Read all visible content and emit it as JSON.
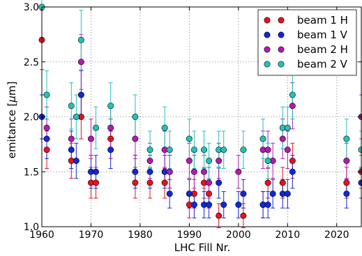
{
  "chart_data": {
    "type": "scatter",
    "title": "",
    "xlabel": "LHC Fill Nr.",
    "ylabel": "emitance [μm]",
    "ylabel_parts": {
      "prefix": "emitance [",
      "mu": "μ",
      "suffix": "m]"
    },
    "xlim": [
      1960,
      2025
    ],
    "ylim": [
      1.0,
      3.0
    ],
    "x_ticks": [
      1960,
      1970,
      1980,
      1990,
      2000,
      2010,
      2020
    ],
    "y_ticks": [
      1.0,
      1.5,
      2.0,
      2.5,
      3.0
    ],
    "y_tick_labels": [
      "1.0",
      "1.5",
      "2.0",
      "2.5",
      "3.0"
    ],
    "grid": true,
    "legend_position": "top-right",
    "error_bar_relative": 0.1,
    "series": [
      {
        "name": "beam 1 H",
        "color": "#e8101e",
        "points": [
          [
            1960,
            2.7
          ],
          [
            1961,
            1.7
          ],
          [
            1966,
            1.6
          ],
          [
            1968,
            2.0
          ],
          [
            1970,
            1.4
          ],
          [
            1971,
            1.4
          ],
          [
            1974,
            1.8
          ],
          [
            1979,
            1.4
          ],
          [
            1982,
            1.4
          ],
          [
            1985,
            1.4
          ],
          [
            1986,
            1.5
          ],
          [
            1990,
            1.2
          ],
          [
            1991,
            1.3
          ],
          [
            1993,
            1.4
          ],
          [
            1994,
            1.3
          ],
          [
            1996,
            1.1
          ],
          [
            2001,
            1.1
          ],
          [
            2005,
            1.2
          ],
          [
            2006,
            1.4
          ],
          [
            2009,
            1.4
          ],
          [
            2011,
            1.6
          ],
          [
            2022,
            1.4
          ],
          [
            2025,
            1.5
          ]
        ]
      },
      {
        "name": "beam 1 V",
        "color": "#1028d8",
        "points": [
          [
            1960,
            2.0
          ],
          [
            1961,
            1.8
          ],
          [
            1966,
            1.7
          ],
          [
            1967,
            1.6
          ],
          [
            1968,
            2.2
          ],
          [
            1970,
            1.5
          ],
          [
            1971,
            1.5
          ],
          [
            1974,
            1.7
          ],
          [
            1979,
            1.5
          ],
          [
            1982,
            1.5
          ],
          [
            1985,
            1.5
          ],
          [
            1986,
            1.3
          ],
          [
            1990,
            1.3
          ],
          [
            1991,
            1.2
          ],
          [
            1993,
            1.2
          ],
          [
            1994,
            1.2
          ],
          [
            1996,
            1.4
          ],
          [
            1997,
            1.2
          ],
          [
            2000,
            1.2
          ],
          [
            2001,
            1.3
          ],
          [
            2005,
            1.2
          ],
          [
            2006,
            1.2
          ],
          [
            2007,
            1.3
          ],
          [
            2009,
            1.3
          ],
          [
            2010,
            1.3
          ],
          [
            2011,
            1.5
          ],
          [
            2022,
            1.3
          ],
          [
            2025,
            1.4
          ]
        ]
      },
      {
        "name": "beam 2 H",
        "color": "#b21ab2",
        "points": [
          [
            1961,
            1.9
          ],
          [
            1966,
            1.8
          ],
          [
            1968,
            2.5
          ],
          [
            1970,
            1.8
          ],
          [
            1974,
            1.9
          ],
          [
            1979,
            1.8
          ],
          [
            1982,
            1.6
          ],
          [
            1985,
            1.7
          ],
          [
            1986,
            1.5
          ],
          [
            1990,
            1.6
          ],
          [
            1991,
            1.5
          ],
          [
            1993,
            1.5
          ],
          [
            1994,
            1.4
          ],
          [
            1996,
            1.6
          ],
          [
            2000,
            1.5
          ],
          [
            2005,
            1.7
          ],
          [
            2006,
            1.7
          ],
          [
            2007,
            1.6
          ],
          [
            2009,
            1.8
          ],
          [
            2010,
            1.7
          ],
          [
            2011,
            2.1
          ],
          [
            2022,
            1.6
          ],
          [
            2025,
            2.0
          ]
        ]
      },
      {
        "name": "beam 2 V",
        "color": "#22c2b8",
        "points": [
          [
            1960,
            3.0
          ],
          [
            1961,
            2.2
          ],
          [
            1966,
            2.1
          ],
          [
            1967,
            2.0
          ],
          [
            1968,
            2.7
          ],
          [
            1971,
            1.9
          ],
          [
            1974,
            2.1
          ],
          [
            1979,
            2.0
          ],
          [
            1982,
            1.7
          ],
          [
            1985,
            1.9
          ],
          [
            1986,
            1.7
          ],
          [
            1990,
            1.8
          ],
          [
            1991,
            1.7
          ],
          [
            1993,
            1.7
          ],
          [
            1994,
            1.6
          ],
          [
            1996,
            1.7
          ],
          [
            1997,
            1.7
          ],
          [
            2001,
            1.7
          ],
          [
            2005,
            1.8
          ],
          [
            2006,
            1.6
          ],
          [
            2009,
            1.9
          ],
          [
            2010,
            1.9
          ],
          [
            2011,
            2.2
          ],
          [
            2022,
            1.8
          ],
          [
            2025,
            1.7
          ]
        ]
      }
    ]
  }
}
